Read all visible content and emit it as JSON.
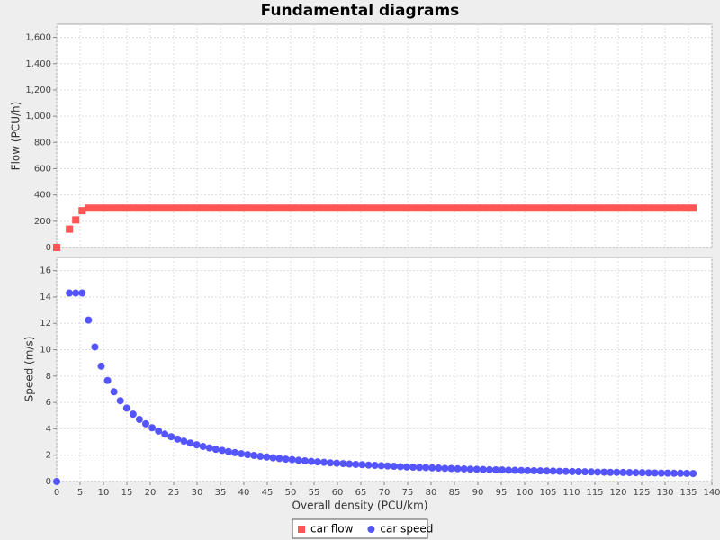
{
  "chart_data": {
    "type": "scatter",
    "title": "Fundamental diagrams",
    "xlabel": "Overall density (PCU/km)",
    "ylabel": "Flow (PCU/h)",
    "y2label": "Speed (m/s)",
    "grid": true,
    "legend": "bottom",
    "xlim": [
      0,
      140
    ],
    "xticks": [
      0,
      5,
      10,
      15,
      20,
      25,
      30,
      35,
      40,
      45,
      50,
      55,
      60,
      65,
      70,
      75,
      80,
      85,
      90,
      95,
      100,
      105,
      110,
      115,
      120,
      125,
      130,
      135,
      140
    ],
    "ylim": [
      0,
      1700
    ],
    "yticks": [
      0,
      200,
      400,
      600,
      800,
      {
        "value": 1000,
        "label": "1,000"
      },
      {
        "value": 1200,
        "label": "1,200"
      },
      {
        "value": 1400,
        "label": "1,400"
      },
      {
        "value": 1600,
        "label": "1,600"
      }
    ],
    "y2lim": [
      0,
      17
    ],
    "y2ticks": [
      0,
      2,
      4,
      6,
      8,
      10,
      12,
      14,
      16
    ],
    "x": [
      0,
      2.72,
      4.08,
      5.44,
      6.8,
      8.16,
      9.52,
      10.88,
      12.24,
      13.6,
      14.96,
      16.32,
      17.68,
      19.04,
      20.4,
      21.76,
      23.12,
      24.48,
      25.84,
      27.2,
      28.56,
      29.92,
      31.28,
      32.64,
      34,
      35.36,
      36.72,
      38.08,
      39.44,
      40.8,
      42.16,
      43.52,
      44.88,
      46.24,
      47.6,
      48.96,
      50.32,
      51.68,
      53.04,
      54.4,
      55.76,
      57.12,
      58.48,
      59.84,
      61.2,
      62.56,
      63.92,
      65.28,
      66.64,
      68,
      69.36,
      70.72,
      72.08,
      73.44,
      74.8,
      76.16,
      77.52,
      78.88,
      80.24,
      81.6,
      82.96,
      84.32,
      85.68,
      87.04,
      88.4,
      89.76,
      91.12,
      92.48,
      93.84,
      95.2,
      96.56,
      97.92,
      99.28,
      100.64,
      102,
      103.36,
      104.72,
      106.08,
      107.44,
      108.8,
      110.16,
      111.52,
      112.88,
      114.24,
      115.6,
      116.96,
      118.32,
      119.68,
      121.04,
      122.4,
      123.76,
      125.12,
      126.48,
      127.84,
      129.2,
      130.56,
      131.92,
      133.28,
      134.64,
      136
    ],
    "series": [
      {
        "name": "car flow",
        "color": "#ff5555",
        "marker": "square",
        "axis": "y",
        "values": [
          0,
          140,
          210,
          280,
          300,
          300,
          300,
          300,
          300,
          300,
          300,
          300,
          300,
          300,
          300,
          300,
          300,
          300,
          300,
          300,
          300,
          300,
          300,
          300,
          300,
          300,
          300,
          300,
          300,
          300,
          300,
          300,
          300,
          300,
          300,
          300,
          300,
          300,
          300,
          300,
          300,
          300,
          300,
          300,
          300,
          300,
          300,
          300,
          300,
          300,
          300,
          300,
          300,
          300,
          300,
          300,
          300,
          300,
          300,
          300,
          300,
          300,
          300,
          300,
          300,
          300,
          300,
          300,
          300,
          300,
          300,
          300,
          300,
          300,
          300,
          300,
          300,
          300,
          300,
          300,
          300,
          300,
          300,
          300,
          300,
          300,
          300,
          300,
          300,
          300,
          300,
          300,
          300,
          300,
          300,
          300,
          300,
          300,
          300,
          300
        ]
      },
      {
        "name": "car speed",
        "color": "#5555ff",
        "marker": "circle",
        "axis": "y2",
        "values": [
          0,
          14.3,
          14.3,
          14.3,
          12.25,
          10.21,
          8.75,
          7.66,
          6.81,
          6.13,
          5.57,
          5.11,
          4.71,
          4.38,
          4.08,
          3.83,
          3.6,
          3.4,
          3.22,
          3.06,
          2.92,
          2.79,
          2.66,
          2.55,
          2.45,
          2.36,
          2.27,
          2.19,
          2.11,
          2.04,
          1.98,
          1.91,
          1.86,
          1.8,
          1.75,
          1.7,
          1.66,
          1.61,
          1.57,
          1.53,
          1.49,
          1.46,
          1.42,
          1.39,
          1.36,
          1.33,
          1.3,
          1.28,
          1.25,
          1.23,
          1.2,
          1.18,
          1.16,
          1.13,
          1.11,
          1.09,
          1.07,
          1.06,
          1.04,
          1.02,
          1,
          0.99,
          0.97,
          0.96,
          0.94,
          0.93,
          0.91,
          0.9,
          0.89,
          0.88,
          0.86,
          0.85,
          0.84,
          0.83,
          0.82,
          0.81,
          0.8,
          0.79,
          0.78,
          0.77,
          0.76,
          0.75,
          0.74,
          0.73,
          0.72,
          0.71,
          0.7,
          0.7,
          0.69,
          0.68,
          0.67,
          0.67,
          0.66,
          0.65,
          0.64,
          0.64,
          0.63,
          0.63,
          0.62,
          0.61
        ]
      }
    ]
  }
}
